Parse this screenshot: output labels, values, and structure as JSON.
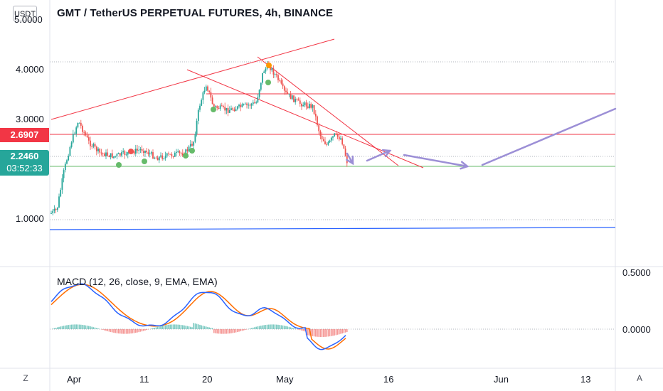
{
  "header": {
    "symbol_title": "GMT / TetherUS PERPETUAL FUTURES, 4h, BINANCE",
    "currency": "USDT"
  },
  "price_axis": {
    "ticks": [
      "5.0000",
      "4.0000",
      "3.0000",
      "1.0000"
    ],
    "resistance_label": "2.6907",
    "last_price_label": "2.2460",
    "countdown_label": "03:52:33"
  },
  "macd_panel": {
    "label": "MACD (12, 26, close, 9, EMA, EMA)",
    "ticks": [
      "0.5000",
      "0.0000"
    ]
  },
  "time_axis": {
    "ticks": [
      "Apr",
      "11",
      "20",
      "May",
      "16",
      "Jun",
      "13"
    ]
  },
  "corner_buttons": {
    "timezone": "Z",
    "auto_scale": "A"
  },
  "colors": {
    "up": "#26a69a",
    "down": "#ef5350",
    "trendline": "#f23645",
    "support": "#66bb6a",
    "blue_line": "#2962ff",
    "arrow": "#9c8fd6",
    "macd_line": "#2962ff",
    "signal_line": "#ff6d00",
    "badge_resistance": "#f23645",
    "badge_price": "#26a69a"
  }
}
